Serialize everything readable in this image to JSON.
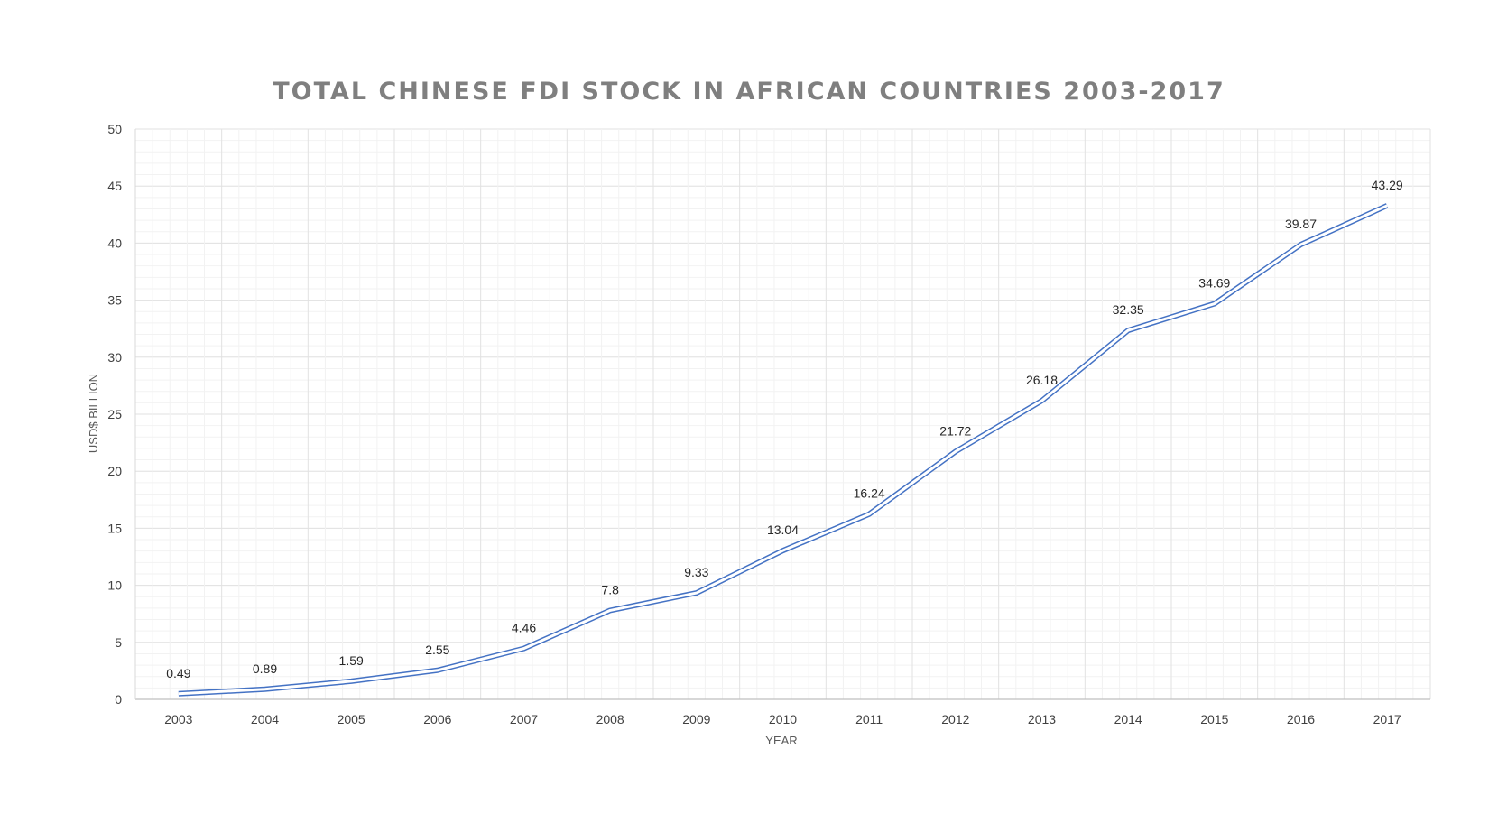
{
  "chart_data": {
    "type": "line",
    "title": "TOTAL CHINESE FDI STOCK IN AFRICAN COUNTRIES 2003-2017",
    "xlabel": "YEAR",
    "ylabel": "USD$ BILLION",
    "ylim": [
      0,
      50
    ],
    "y_ticks": [
      "0",
      "5",
      "10",
      "15",
      "20",
      "25",
      "30",
      "35",
      "40",
      "45",
      "50"
    ],
    "categories": [
      "2003",
      "2004",
      "2005",
      "2006",
      "2007",
      "2008",
      "2009",
      "2010",
      "2011",
      "2012",
      "2013",
      "2014",
      "2015",
      "2016",
      "2017"
    ],
    "series": [
      {
        "values": [
          0.49,
          0.89,
          1.59,
          2.55,
          4.46,
          7.8,
          9.33,
          13.04,
          16.24,
          21.72,
          26.18,
          32.35,
          34.69,
          39.87,
          43.29
        ],
        "labels": [
          "0.49",
          "0.89",
          "1.59",
          "2.55",
          "4.46",
          "7.8",
          "9.33",
          "13.04",
          "16.24",
          "21.72",
          "26.18",
          "32.35",
          "34.69",
          "39.87",
          "43.29"
        ],
        "color": "#4472c4",
        "style": "double-line"
      }
    ],
    "grid": true,
    "minor_grid": true,
    "legend": "none"
  }
}
